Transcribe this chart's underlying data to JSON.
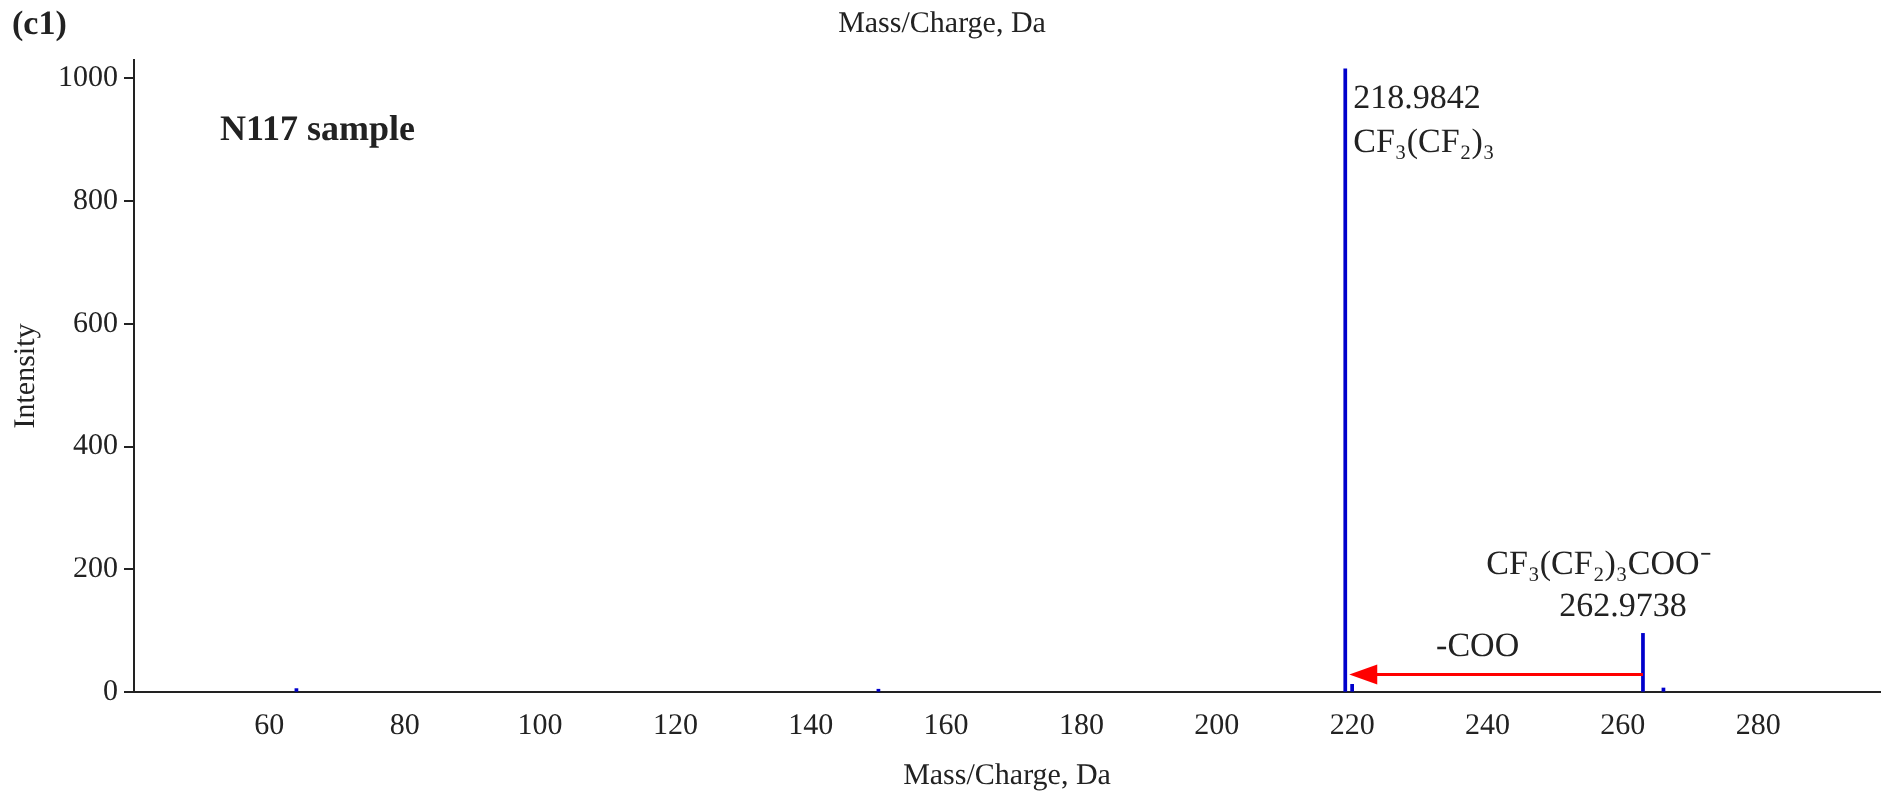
{
  "chart_data": {
    "type": "bar",
    "xlabel": "Mass/Charge, Da",
    "ylabel": "Intensity",
    "x": [
      64,
      150,
      218.9842,
      220,
      262.9738,
      266
    ],
    "values": [
      5,
      4,
      1015,
      12,
      95,
      6
    ],
    "color": "#0000cc",
    "xlim": [
      40,
      298
    ],
    "xticks": [
      60,
      80,
      100,
      120,
      140,
      160,
      180,
      200,
      220,
      240,
      260,
      280
    ],
    "ylim": [
      0,
      1030
    ],
    "yticks": [
      0,
      200,
      400,
      600,
      800,
      1000
    ],
    "grid": false,
    "legend": false,
    "annotations": [
      "(c1)",
      "Mass/Charge, Da",
      "N117 sample",
      "-COO",
      "218.9842",
      "CF₃(CF₂)₃",
      "CF₃(CF₂)₃COO⁻",
      "262.9738"
    ]
  }
}
